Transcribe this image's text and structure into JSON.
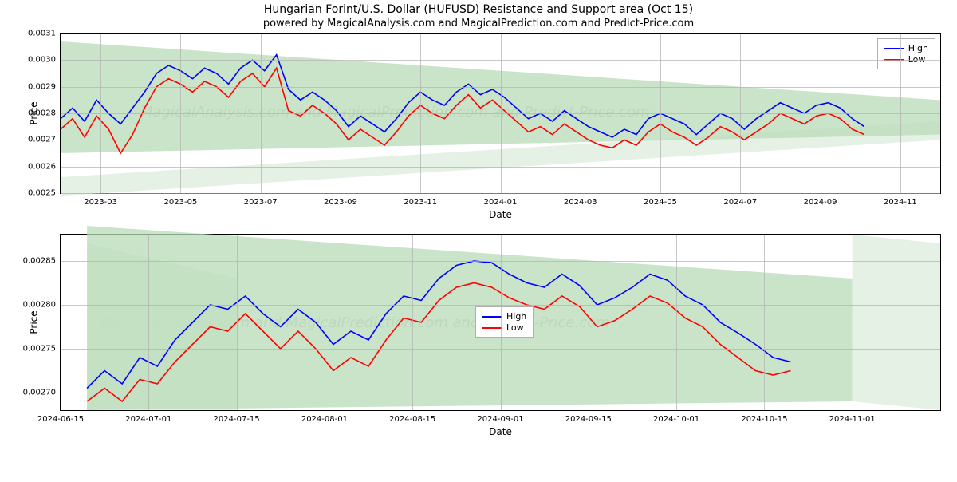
{
  "title": "Hungarian Forint/U.S. Dollar (HUFUSD) Resistance and Support area (Oct 15)",
  "subtitle": "powered by MagicalAnalysis.com and MagicalPrediction.com and Predict-Price.com",
  "watermark_text": "MagicalAnalysis.com and MagicalPrediction.com and Predict-Price.com",
  "legend": {
    "high": "High",
    "low": "Low"
  },
  "colors": {
    "high_line": "#0000ff",
    "low_line": "#ff0000",
    "support_fill": "#b8dbb8",
    "support_fill_light": "#e2f0e2",
    "grid": "#b0b0b0",
    "border": "#000000",
    "background": "#ffffff",
    "watermark": "#cccccc"
  },
  "top_chart": {
    "type": "line",
    "xlabel": "Date",
    "ylabel": "Price",
    "ylim": [
      0.0025,
      0.0031
    ],
    "yticks": [
      0.0025,
      0.0026,
      0.0027,
      0.0028,
      0.0029,
      0.003,
      0.0031
    ],
    "ytick_labels": [
      "0.0025",
      "0.0026",
      "0.0027",
      "0.0028",
      "0.0029",
      "0.0030",
      "0.0031"
    ],
    "x_range": [
      0,
      22
    ],
    "xticks": [
      1,
      3,
      5,
      7,
      9,
      11,
      13,
      15,
      17,
      19,
      21
    ],
    "xtick_labels": [
      "2023-03",
      "2023-05",
      "2023-07",
      "2023-09",
      "2023-11",
      "2024-01",
      "2024-03",
      "2024-05",
      "2024-07",
      "2024-09",
      "2024-11"
    ],
    "legend_pos": "top-right",
    "support_zone_main": [
      [
        0,
        0.00307
      ],
      [
        22,
        0.00285
      ],
      [
        22,
        0.00272
      ],
      [
        0,
        0.00265
      ]
    ],
    "support_zone_light": [
      [
        0,
        0.00256
      ],
      [
        22,
        0.00277
      ],
      [
        22,
        0.0027
      ],
      [
        0,
        0.00249
      ]
    ],
    "high_series": [
      [
        0,
        0.00278
      ],
      [
        0.3,
        0.00282
      ],
      [
        0.6,
        0.00277
      ],
      [
        0.9,
        0.00285
      ],
      [
        1.2,
        0.0028
      ],
      [
        1.5,
        0.00276
      ],
      [
        1.8,
        0.00282
      ],
      [
        2.1,
        0.00288
      ],
      [
        2.4,
        0.00295
      ],
      [
        2.7,
        0.00298
      ],
      [
        3.0,
        0.00296
      ],
      [
        3.3,
        0.00293
      ],
      [
        3.6,
        0.00297
      ],
      [
        3.9,
        0.00295
      ],
      [
        4.2,
        0.00291
      ],
      [
        4.5,
        0.00297
      ],
      [
        4.8,
        0.003
      ],
      [
        5.1,
        0.00296
      ],
      [
        5.4,
        0.00302
      ],
      [
        5.7,
        0.00289
      ],
      [
        6.0,
        0.00285
      ],
      [
        6.3,
        0.00288
      ],
      [
        6.6,
        0.00285
      ],
      [
        6.9,
        0.00281
      ],
      [
        7.2,
        0.00275
      ],
      [
        7.5,
        0.00279
      ],
      [
        7.8,
        0.00276
      ],
      [
        8.1,
        0.00273
      ],
      [
        8.4,
        0.00278
      ],
      [
        8.7,
        0.00284
      ],
      [
        9.0,
        0.00288
      ],
      [
        9.3,
        0.00285
      ],
      [
        9.6,
        0.00283
      ],
      [
        9.9,
        0.00288
      ],
      [
        10.2,
        0.00291
      ],
      [
        10.5,
        0.00287
      ],
      [
        10.8,
        0.00289
      ],
      [
        11.1,
        0.00286
      ],
      [
        11.4,
        0.00282
      ],
      [
        11.7,
        0.00278
      ],
      [
        12.0,
        0.0028
      ],
      [
        12.3,
        0.00277
      ],
      [
        12.6,
        0.00281
      ],
      [
        12.9,
        0.00278
      ],
      [
        13.2,
        0.00275
      ],
      [
        13.5,
        0.00273
      ],
      [
        13.8,
        0.00271
      ],
      [
        14.1,
        0.00274
      ],
      [
        14.4,
        0.00272
      ],
      [
        14.7,
        0.00278
      ],
      [
        15.0,
        0.0028
      ],
      [
        15.3,
        0.00278
      ],
      [
        15.6,
        0.00276
      ],
      [
        15.9,
        0.00272
      ],
      [
        16.2,
        0.00276
      ],
      [
        16.5,
        0.0028
      ],
      [
        16.8,
        0.00278
      ],
      [
        17.1,
        0.00274
      ],
      [
        17.4,
        0.00278
      ],
      [
        17.7,
        0.00281
      ],
      [
        18.0,
        0.00284
      ],
      [
        18.3,
        0.00282
      ],
      [
        18.6,
        0.0028
      ],
      [
        18.9,
        0.00283
      ],
      [
        19.2,
        0.00284
      ],
      [
        19.5,
        0.00282
      ],
      [
        19.8,
        0.00278
      ],
      [
        20.1,
        0.00275
      ]
    ],
    "low_series": [
      [
        0,
        0.00274
      ],
      [
        0.3,
        0.00278
      ],
      [
        0.6,
        0.00271
      ],
      [
        0.9,
        0.00279
      ],
      [
        1.2,
        0.00274
      ],
      [
        1.5,
        0.00265
      ],
      [
        1.8,
        0.00272
      ],
      [
        2.1,
        0.00282
      ],
      [
        2.4,
        0.0029
      ],
      [
        2.7,
        0.00293
      ],
      [
        3.0,
        0.00291
      ],
      [
        3.3,
        0.00288
      ],
      [
        3.6,
        0.00292
      ],
      [
        3.9,
        0.0029
      ],
      [
        4.2,
        0.00286
      ],
      [
        4.5,
        0.00292
      ],
      [
        4.8,
        0.00295
      ],
      [
        5.1,
        0.0029
      ],
      [
        5.4,
        0.00297
      ],
      [
        5.7,
        0.00281
      ],
      [
        6.0,
        0.00279
      ],
      [
        6.3,
        0.00283
      ],
      [
        6.6,
        0.0028
      ],
      [
        6.9,
        0.00276
      ],
      [
        7.2,
        0.0027
      ],
      [
        7.5,
        0.00274
      ],
      [
        7.8,
        0.00271
      ],
      [
        8.1,
        0.00268
      ],
      [
        8.4,
        0.00273
      ],
      [
        8.7,
        0.00279
      ],
      [
        9.0,
        0.00283
      ],
      [
        9.3,
        0.0028
      ],
      [
        9.6,
        0.00278
      ],
      [
        9.9,
        0.00283
      ],
      [
        10.2,
        0.00287
      ],
      [
        10.5,
        0.00282
      ],
      [
        10.8,
        0.00285
      ],
      [
        11.1,
        0.00281
      ],
      [
        11.4,
        0.00277
      ],
      [
        11.7,
        0.00273
      ],
      [
        12.0,
        0.00275
      ],
      [
        12.3,
        0.00272
      ],
      [
        12.6,
        0.00276
      ],
      [
        12.9,
        0.00273
      ],
      [
        13.2,
        0.0027
      ],
      [
        13.5,
        0.00268
      ],
      [
        13.8,
        0.00267
      ],
      [
        14.1,
        0.0027
      ],
      [
        14.4,
        0.00268
      ],
      [
        14.7,
        0.00273
      ],
      [
        15.0,
        0.00276
      ],
      [
        15.3,
        0.00273
      ],
      [
        15.6,
        0.00271
      ],
      [
        15.9,
        0.00268
      ],
      [
        16.2,
        0.00271
      ],
      [
        16.5,
        0.00275
      ],
      [
        16.8,
        0.00273
      ],
      [
        17.1,
        0.0027
      ],
      [
        17.4,
        0.00273
      ],
      [
        17.7,
        0.00276
      ],
      [
        18.0,
        0.0028
      ],
      [
        18.3,
        0.00278
      ],
      [
        18.6,
        0.00276
      ],
      [
        18.9,
        0.00279
      ],
      [
        19.2,
        0.0028
      ],
      [
        19.5,
        0.00278
      ],
      [
        19.8,
        0.00274
      ],
      [
        20.1,
        0.00272
      ]
    ]
  },
  "bottom_chart": {
    "type": "line",
    "xlabel": "Date",
    "ylabel": "Price",
    "ylim": [
      0.00268,
      0.00288
    ],
    "yticks": [
      0.0027,
      0.00275,
      0.0028,
      0.00285
    ],
    "ytick_labels": [
      "0.00270",
      "0.00275",
      "0.00280",
      "0.00285"
    ],
    "x_range": [
      0,
      10
    ],
    "xticks": [
      0,
      1,
      2,
      3,
      4,
      5,
      6,
      7,
      8,
      9,
      10
    ],
    "xtick_labels": [
      "2024-06-15",
      "2024-07-01",
      "2024-07-15",
      "2024-08-01",
      "2024-08-15",
      "2024-09-01",
      "2024-09-15",
      "2024-10-01",
      "2024-10-15",
      "2024-11-01",
      ""
    ],
    "xtick_show": [
      true,
      true,
      true,
      true,
      true,
      true,
      true,
      true,
      true,
      true,
      false
    ],
    "legend_pos": "center",
    "support_zone_main": [
      [
        0.3,
        0.00289
      ],
      [
        9,
        0.00283
      ],
      [
        9,
        0.00269
      ],
      [
        0.3,
        0.00268
      ]
    ],
    "support_zone_light1": [
      [
        0.3,
        0.00287
      ],
      [
        2,
        0.00283
      ],
      [
        2,
        0.00268
      ],
      [
        0.3,
        0.00268
      ]
    ],
    "support_zone_light2": [
      [
        9,
        0.00288
      ],
      [
        10,
        0.00287
      ],
      [
        10,
        0.00268
      ],
      [
        9,
        0.00269
      ]
    ],
    "high_series": [
      [
        0.3,
        0.002705
      ],
      [
        0.5,
        0.002725
      ],
      [
        0.7,
        0.00271
      ],
      [
        0.9,
        0.00274
      ],
      [
        1.1,
        0.00273
      ],
      [
        1.3,
        0.00276
      ],
      [
        1.5,
        0.00278
      ],
      [
        1.7,
        0.0028
      ],
      [
        1.9,
        0.002795
      ],
      [
        2.1,
        0.00281
      ],
      [
        2.3,
        0.00279
      ],
      [
        2.5,
        0.002775
      ],
      [
        2.7,
        0.002795
      ],
      [
        2.9,
        0.00278
      ],
      [
        3.1,
        0.002755
      ],
      [
        3.3,
        0.00277
      ],
      [
        3.5,
        0.00276
      ],
      [
        3.7,
        0.00279
      ],
      [
        3.9,
        0.00281
      ],
      [
        4.1,
        0.002805
      ],
      [
        4.3,
        0.00283
      ],
      [
        4.5,
        0.002845
      ],
      [
        4.7,
        0.00285
      ],
      [
        4.9,
        0.002848
      ],
      [
        5.1,
        0.002835
      ],
      [
        5.3,
        0.002825
      ],
      [
        5.5,
        0.00282
      ],
      [
        5.7,
        0.002835
      ],
      [
        5.9,
        0.002822
      ],
      [
        6.1,
        0.0028
      ],
      [
        6.3,
        0.002808
      ],
      [
        6.5,
        0.00282
      ],
      [
        6.7,
        0.002835
      ],
      [
        6.9,
        0.002828
      ],
      [
        7.1,
        0.00281
      ],
      [
        7.3,
        0.0028
      ],
      [
        7.5,
        0.00278
      ],
      [
        7.7,
        0.002768
      ],
      [
        7.9,
        0.002755
      ],
      [
        8.1,
        0.00274
      ],
      [
        8.3,
        0.002735
      ]
    ],
    "low_series": [
      [
        0.3,
        0.00269
      ],
      [
        0.5,
        0.002705
      ],
      [
        0.7,
        0.00269
      ],
      [
        0.9,
        0.002715
      ],
      [
        1.1,
        0.00271
      ],
      [
        1.3,
        0.002735
      ],
      [
        1.5,
        0.002755
      ],
      [
        1.7,
        0.002775
      ],
      [
        1.9,
        0.00277
      ],
      [
        2.1,
        0.00279
      ],
      [
        2.3,
        0.00277
      ],
      [
        2.5,
        0.00275
      ],
      [
        2.7,
        0.00277
      ],
      [
        2.9,
        0.00275
      ],
      [
        3.1,
        0.002725
      ],
      [
        3.3,
        0.00274
      ],
      [
        3.5,
        0.00273
      ],
      [
        3.7,
        0.00276
      ],
      [
        3.9,
        0.002785
      ],
      [
        4.1,
        0.00278
      ],
      [
        4.3,
        0.002805
      ],
      [
        4.5,
        0.00282
      ],
      [
        4.7,
        0.002825
      ],
      [
        4.9,
        0.00282
      ],
      [
        5.1,
        0.002808
      ],
      [
        5.3,
        0.0028
      ],
      [
        5.5,
        0.002795
      ],
      [
        5.7,
        0.00281
      ],
      [
        5.9,
        0.002798
      ],
      [
        6.1,
        0.002775
      ],
      [
        6.3,
        0.002782
      ],
      [
        6.5,
        0.002795
      ],
      [
        6.7,
        0.00281
      ],
      [
        6.9,
        0.002802
      ],
      [
        7.1,
        0.002785
      ],
      [
        7.3,
        0.002775
      ],
      [
        7.5,
        0.002755
      ],
      [
        7.7,
        0.00274
      ],
      [
        7.9,
        0.002725
      ],
      [
        8.1,
        0.00272
      ],
      [
        8.3,
        0.002725
      ]
    ]
  }
}
